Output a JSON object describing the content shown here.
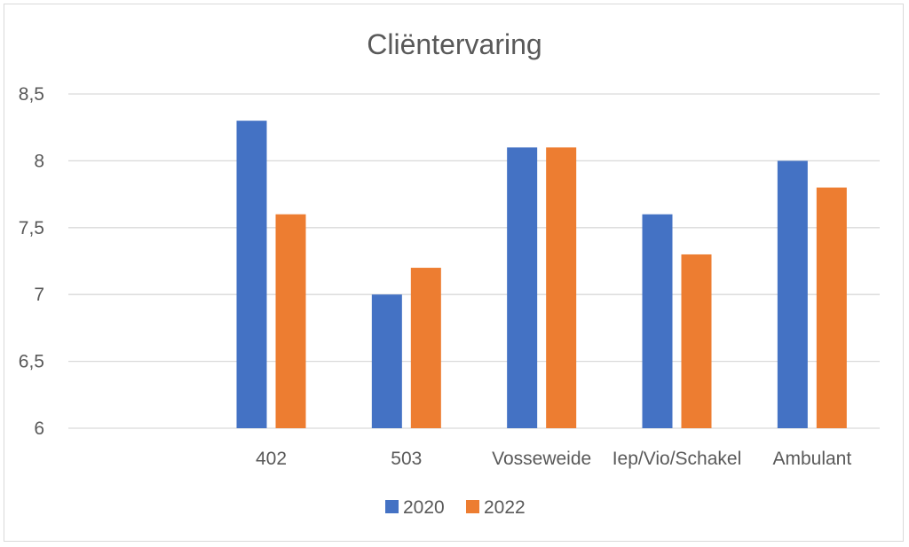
{
  "chart_data": {
    "type": "bar",
    "title": "Cliëntervaring",
    "xlabel": "",
    "ylabel": "",
    "categories": [
      "",
      "402",
      "503",
      "Vosseweide",
      "Iep/Vio/Schakel",
      "Ambulant"
    ],
    "series": [
      {
        "name": "2020",
        "color": "#4472c4",
        "values": [
          null,
          8.3,
          7.0,
          8.1,
          7.6,
          8.0
        ]
      },
      {
        "name": "2022",
        "color": "#ed7d31",
        "values": [
          null,
          7.6,
          7.2,
          8.1,
          7.3,
          7.8
        ]
      }
    ],
    "ylim": [
      6,
      8.5
    ],
    "yticks": [
      6,
      6.5,
      7,
      7.5,
      8,
      8.5
    ],
    "ytick_labels": [
      "6",
      "6,5",
      "7",
      "7,5",
      "8",
      "8,5"
    ],
    "grid": true,
    "legend_position": "bottom"
  }
}
